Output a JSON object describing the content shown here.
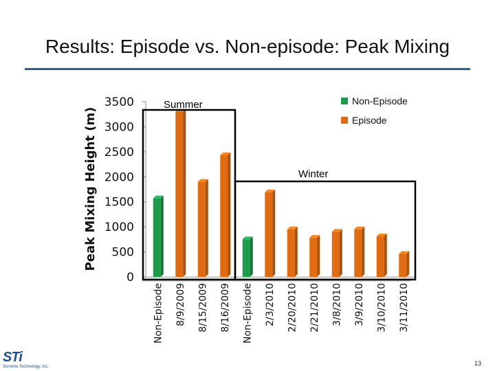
{
  "slide": {
    "title": "Results:  Episode vs. Non-episode:  Peak Mixing",
    "page_number": "13",
    "logo": {
      "mark": "STi",
      "subtitle": "Sonoma Technology, Inc."
    }
  },
  "colors": {
    "non_episode": "#1a9c4a",
    "episode": "#e06b10",
    "title_rule": "#2a5c9e"
  },
  "chart_data": {
    "type": "bar",
    "title": "",
    "xlabel": "",
    "ylabel": "Peak Mixing Height (m)",
    "ylim": [
      0,
      3500
    ],
    "yticks": [
      0,
      500,
      1000,
      1500,
      2000,
      2500,
      3000,
      3500
    ],
    "categories": [
      "Non-Episode",
      "8/9/2009",
      "8/15/2009",
      "8/16/2009",
      "Non-Episode",
      "2/3/2010",
      "2/20/2010",
      "2/21/2010",
      "3/8/2010",
      "3/9/2010",
      "3/10/2010",
      "3/11/2010"
    ],
    "values": [
      1570,
      3300,
      1900,
      2430,
      750,
      1690,
      950,
      780,
      900,
      950,
      810,
      460
    ],
    "series_type": [
      "Non-Episode",
      "Episode",
      "Episode",
      "Episode",
      "Non-Episode",
      "Episode",
      "Episode",
      "Episode",
      "Episode",
      "Episode",
      "Episode",
      "Episode"
    ],
    "legend": {
      "position": "top-right",
      "entries": [
        {
          "label": "Non-Episode",
          "color": "#1a9c4a"
        },
        {
          "label": "Episode",
          "color": "#e06b10"
        }
      ]
    },
    "annotations": [
      {
        "label": "Summer",
        "from_index": 0,
        "to_index": 3
      },
      {
        "label": "Winter",
        "from_index": 4,
        "to_index": 11
      }
    ],
    "grid": false
  }
}
